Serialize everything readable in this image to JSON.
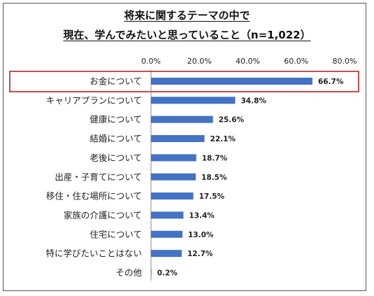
{
  "chart_data": {
    "type": "bar",
    "orientation": "horizontal",
    "title_line1": "将来に関するテーマの中で",
    "title_line2": "現在、学んでみたいと思っていること（n=1,022）",
    "categories": [
      "お金について",
      "キャリアプランについて",
      "健康について",
      "結婚について",
      "老後について",
      "出産・子育てについて",
      "移住・住む場所について",
      "家族の介護について",
      "住宅について",
      "特に学びたいことはない",
      "その他"
    ],
    "values": [
      66.7,
      34.8,
      25.6,
      22.1,
      18.7,
      18.5,
      17.5,
      13.4,
      13.0,
      12.7,
      0.2
    ],
    "value_labels": [
      "66.7%",
      "34.8%",
      "25.6%",
      "22.1%",
      "18.7%",
      "18.5%",
      "17.5%",
      "13.4%",
      "13.0%",
      "12.7%",
      "0.2%"
    ],
    "x_ticks": [
      "0.0%",
      "20.0%",
      "40.0%",
      "60.0%",
      "80.0%"
    ],
    "xlim": [
      0,
      80
    ],
    "grid": false,
    "highlighted_category": "お金について",
    "colors": {
      "bar": "#4472c4",
      "highlight_box": "#c0504d"
    }
  }
}
